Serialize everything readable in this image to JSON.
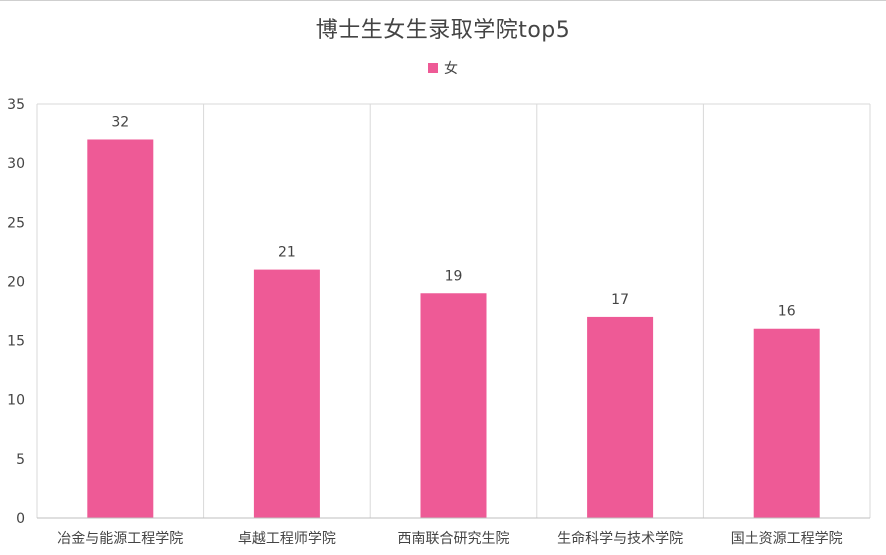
{
  "chart_data": {
    "type": "bar",
    "title": "博士生女生录取学院top5",
    "categories": [
      "冶金与能源工程学院",
      "卓越工程师学院",
      "西南联合研究生院",
      "生命科学与技术学院",
      "国土资源工程学院"
    ],
    "series": [
      {
        "name": "女",
        "values": [
          32,
          21,
          19,
          17,
          16
        ],
        "color": "#ee5a96"
      }
    ],
    "ylim": [
      0,
      35
    ],
    "yticks": [
      0,
      5,
      10,
      15,
      20,
      25,
      30,
      35
    ],
    "xlabel": "",
    "ylabel": "",
    "legend": "top-center",
    "grid": "vertical category separators",
    "data_labels": true
  }
}
